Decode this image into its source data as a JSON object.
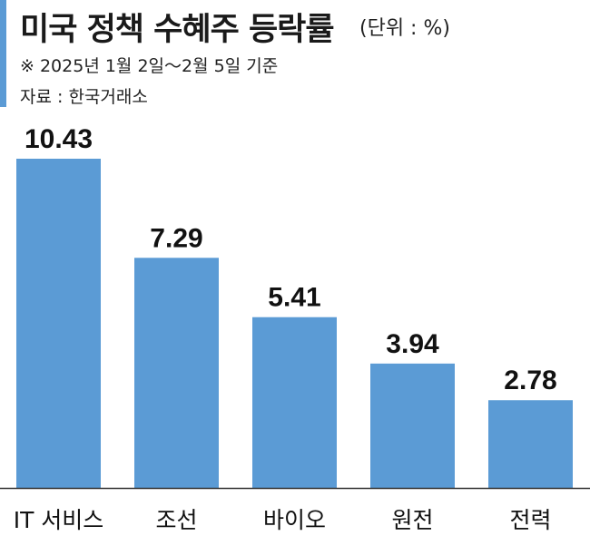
{
  "header": {
    "title": "미국 정책 수혜주 등락률",
    "unit": "(단위 : %)",
    "note": "※ 2025년 1월 2일～2월 5일 기준",
    "source": "자료 : 한국거래소"
  },
  "chart_data": {
    "type": "bar",
    "title": "미국 정책 수혜주 등락률",
    "categories": [
      "IT 서비스",
      "조선",
      "바이오",
      "원전",
      "전력"
    ],
    "values": [
      10.43,
      7.29,
      5.41,
      3.94,
      2.78
    ],
    "value_labels": [
      "10.43",
      "7.29",
      "5.41",
      "3.94",
      "2.78"
    ],
    "ylim": [
      0,
      10.43
    ],
    "grid": false,
    "legend": "none",
    "bar_color": "#5b9bd5",
    "axis_color": "#333333"
  }
}
